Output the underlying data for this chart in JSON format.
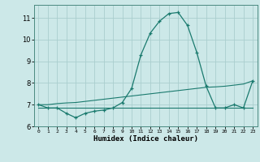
{
  "xlabel": "Humidex (Indice chaleur)",
  "x_values": [
    0,
    1,
    2,
    3,
    4,
    5,
    6,
    7,
    8,
    9,
    10,
    11,
    12,
    13,
    14,
    15,
    16,
    17,
    18,
    19,
    20,
    21,
    22,
    23
  ],
  "line1_y": [
    7.0,
    6.85,
    6.85,
    6.6,
    6.4,
    6.6,
    6.7,
    6.75,
    6.85,
    7.1,
    7.75,
    9.3,
    10.3,
    10.85,
    11.2,
    11.25,
    10.65,
    9.4,
    7.85,
    6.85,
    6.85,
    7.0,
    6.85,
    8.1
  ],
  "trend1_y": [
    7.0,
    7.0,
    7.05,
    7.08,
    7.1,
    7.15,
    7.2,
    7.25,
    7.3,
    7.35,
    7.4,
    7.45,
    7.5,
    7.55,
    7.6,
    7.65,
    7.7,
    7.75,
    7.8,
    7.82,
    7.85,
    7.9,
    7.95,
    8.1
  ],
  "trend2_y": [
    6.85,
    6.85,
    6.85,
    6.85,
    6.85,
    6.85,
    6.85,
    6.85,
    6.85,
    6.85,
    6.85,
    6.85,
    6.85,
    6.85,
    6.85,
    6.85,
    6.85,
    6.85,
    6.85,
    6.85,
    6.85,
    6.85,
    6.85,
    6.85
  ],
  "color_main": "#1a7a6e",
  "background_color": "#cce8e8",
  "grid_color": "#aacece",
  "ylim": [
    6.0,
    11.6
  ],
  "yticks": [
    6,
    7,
    8,
    9,
    10,
    11
  ],
  "xlim": [
    -0.5,
    23.5
  ],
  "x_labels": [
    "0",
    "1",
    "2",
    "3",
    "4",
    "5",
    "6",
    "7",
    "8",
    "9",
    "10",
    "11",
    "12",
    "13",
    "14",
    "15",
    "16",
    "17",
    "18",
    "19",
    "20",
    "21",
    "22",
    "23"
  ]
}
